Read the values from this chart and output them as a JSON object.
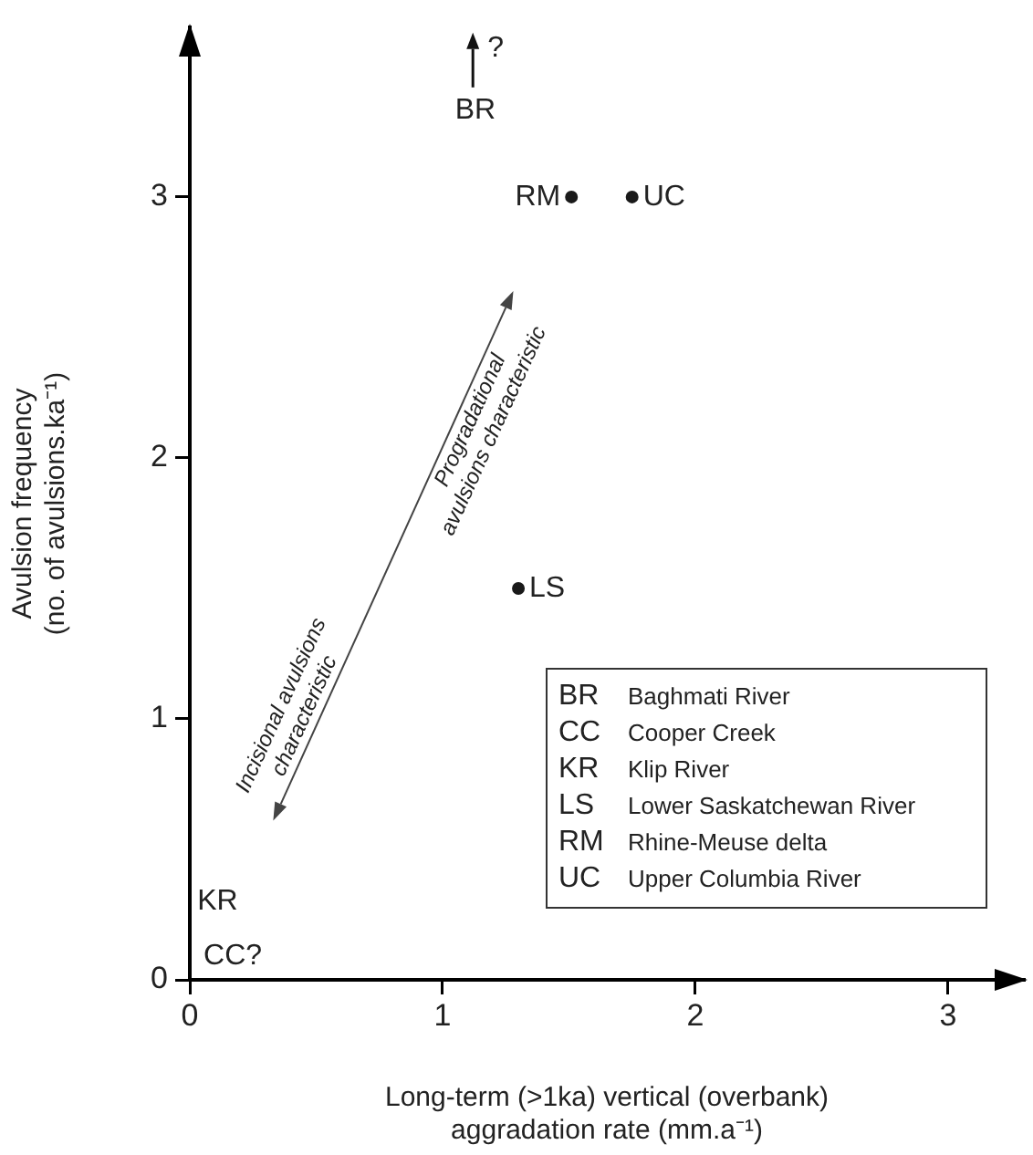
{
  "chart_data": {
    "type": "scatter",
    "xlabel": "Long-term (>1ka) vertical (overbank) aggradation rate (mm.a⁻¹)",
    "ylabel": "Avulsion frequency (no. of avulsions.ka⁻¹)",
    "x": [
      1.51,
      1.75,
      1.3
    ],
    "values": [
      3,
      3,
      1.5
    ],
    "color": "#1a1a1a",
    "marker": "circle",
    "xlim": [
      0,
      3.3
    ],
    "ylim": [
      0,
      3.65
    ],
    "xticks": [
      0,
      1,
      2,
      3
    ],
    "yticks": [
      0,
      1,
      2,
      3
    ],
    "grid": false,
    "legend": false,
    "annotations": [
      {
        "text": "RM",
        "x": 1.51,
        "y": 3
      },
      {
        "text": "UC",
        "x": 1.75,
        "y": 3
      },
      {
        "text": "LS",
        "x": 1.3,
        "y": 1.5
      },
      "BR",
      "?",
      "KR",
      "CC?",
      "Incisional avulsions characteristic",
      "Progradational avulsions characteristic",
      "BR",
      "Baghmati River",
      "CC",
      "Cooper Creek",
      "KR",
      "Klip River",
      "LS",
      "Lower Saskatchewan River",
      "RM",
      "Rhine-Meuse delta",
      "UC",
      "Upper Columbia River"
    ]
  }
}
